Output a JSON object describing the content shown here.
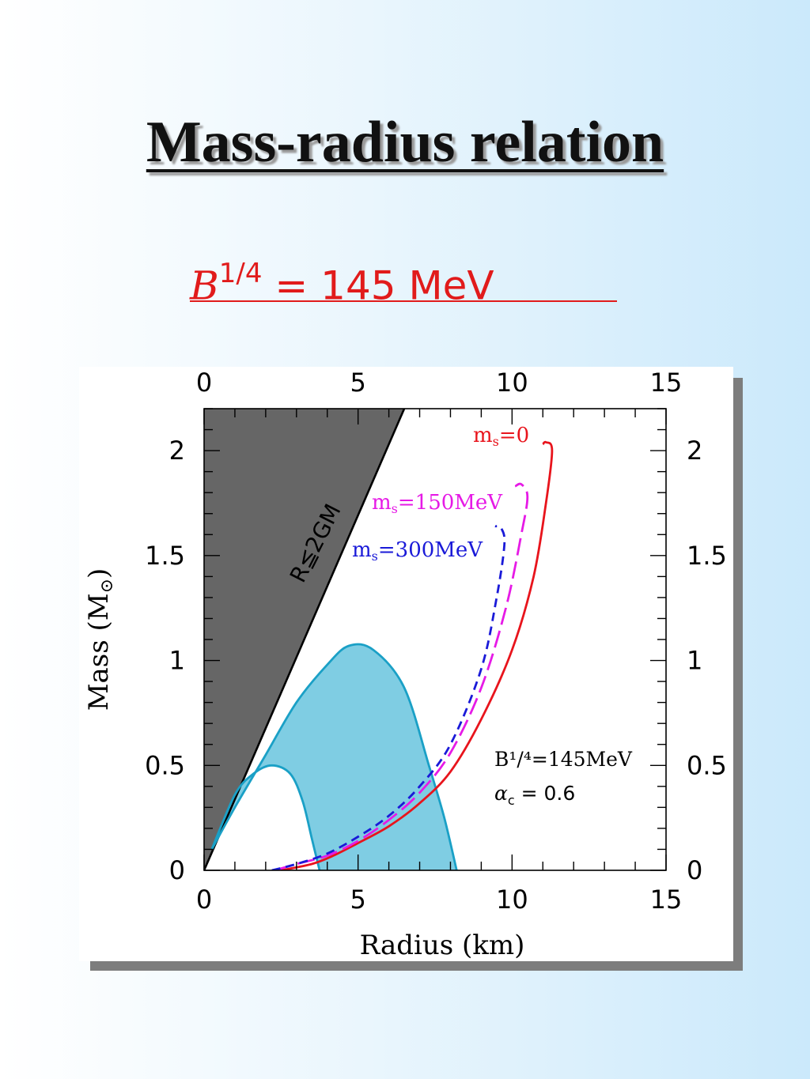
{
  "slide": {
    "title": "Mass-radius relation",
    "subtitle_var": "B",
    "subtitle_exp": "1/4",
    "subtitle_rest": " = 145 MeV",
    "colors": {
      "subtitle": "#e11b1b",
      "title": "#111111"
    }
  },
  "chart_data": {
    "type": "line",
    "title": "",
    "xlabel": "Radius (km)",
    "ylabel": "Mass (M",
    "ylabel_symbol": "⊙",
    "xlim": [
      0,
      15
    ],
    "ylim": [
      0,
      2.2
    ],
    "x_ticks": [
      0,
      5,
      10,
      15
    ],
    "y_ticks": [
      0,
      0.5,
      1,
      1.5,
      2
    ],
    "x_tick_labels": [
      "0",
      "5",
      "10",
      "15"
    ],
    "y_tick_labels": [
      "0",
      "0.5",
      "1",
      "1.5",
      "2"
    ],
    "grid": false,
    "annotations": {
      "forbidden_label": "R≦2GM",
      "params_line1": "B¹/⁴=145MeV",
      "params_line2_symbol": "α",
      "params_line2_sub": "c",
      "params_line2_rest": " =  0.6"
    },
    "forbidden_region": {
      "label": "R≦2GM",
      "color": "#666666",
      "boundary": [
        [
          0,
          0
        ],
        [
          6.5,
          2.2
        ]
      ]
    },
    "shaded_band": {
      "color": "#7fcde3",
      "edge_color": "#1aa0c6",
      "outer": [
        [
          0.25,
          0.1
        ],
        [
          1,
          0.3
        ],
        [
          2,
          0.55
        ],
        [
          3,
          0.8
        ],
        [
          4,
          0.98
        ],
        [
          4.7,
          1.07
        ],
        [
          5.5,
          1.05
        ],
        [
          6.5,
          0.87
        ],
        [
          7.3,
          0.5
        ],
        [
          7.8,
          0.25
        ],
        [
          8.2,
          0
        ]
      ],
      "inner": [
        [
          0.25,
          0.1
        ],
        [
          1,
          0.36
        ],
        [
          1.6,
          0.46
        ],
        [
          2.2,
          0.5
        ],
        [
          2.8,
          0.46
        ],
        [
          3.2,
          0.33
        ],
        [
          3.5,
          0.15
        ],
        [
          3.75,
          0
        ]
      ]
    },
    "series": [
      {
        "label_prefix": "m",
        "label_sub": "s",
        "label_suffix": "=0",
        "color": "#e8141c",
        "dash": "solid",
        "points": [
          [
            2.5,
            0
          ],
          [
            3.5,
            0.03
          ],
          [
            4.2,
            0.07
          ],
          [
            5,
            0.13
          ],
          [
            6,
            0.21
          ],
          [
            7,
            0.32
          ],
          [
            8,
            0.47
          ],
          [
            9,
            0.72
          ],
          [
            10,
            1.05
          ],
          [
            10.7,
            1.4
          ],
          [
            11.1,
            1.75
          ],
          [
            11.3,
            2.0
          ],
          [
            11.1,
            2.04
          ],
          [
            11.0,
            2.03
          ]
        ]
      },
      {
        "label_prefix": "m",
        "label_sub": "s",
        "label_suffix": "=150MeV",
        "color": "#e61ae6",
        "dash": "long-dash",
        "points": [
          [
            2.3,
            0
          ],
          [
            3,
            0.03
          ],
          [
            4,
            0.07
          ],
          [
            5,
            0.14
          ],
          [
            6,
            0.24
          ],
          [
            7,
            0.37
          ],
          [
            8,
            0.56
          ],
          [
            9,
            0.87
          ],
          [
            9.8,
            1.25
          ],
          [
            10.3,
            1.6
          ],
          [
            10.5,
            1.78
          ],
          [
            10.3,
            1.84
          ],
          [
            10.1,
            1.83
          ]
        ]
      },
      {
        "label_prefix": "m",
        "label_sub": "s",
        "label_suffix": "=300MeV",
        "color": "#1a1ad8",
        "dash": "short-dash",
        "points": [
          [
            2.2,
            0
          ],
          [
            3,
            0.03
          ],
          [
            4,
            0.08
          ],
          [
            5,
            0.16
          ],
          [
            6,
            0.26
          ],
          [
            7,
            0.4
          ],
          [
            8,
            0.6
          ],
          [
            9,
            0.96
          ],
          [
            9.5,
            1.3
          ],
          [
            9.75,
            1.55
          ],
          [
            9.65,
            1.63
          ],
          [
            9.45,
            1.64
          ]
        ]
      }
    ]
  }
}
